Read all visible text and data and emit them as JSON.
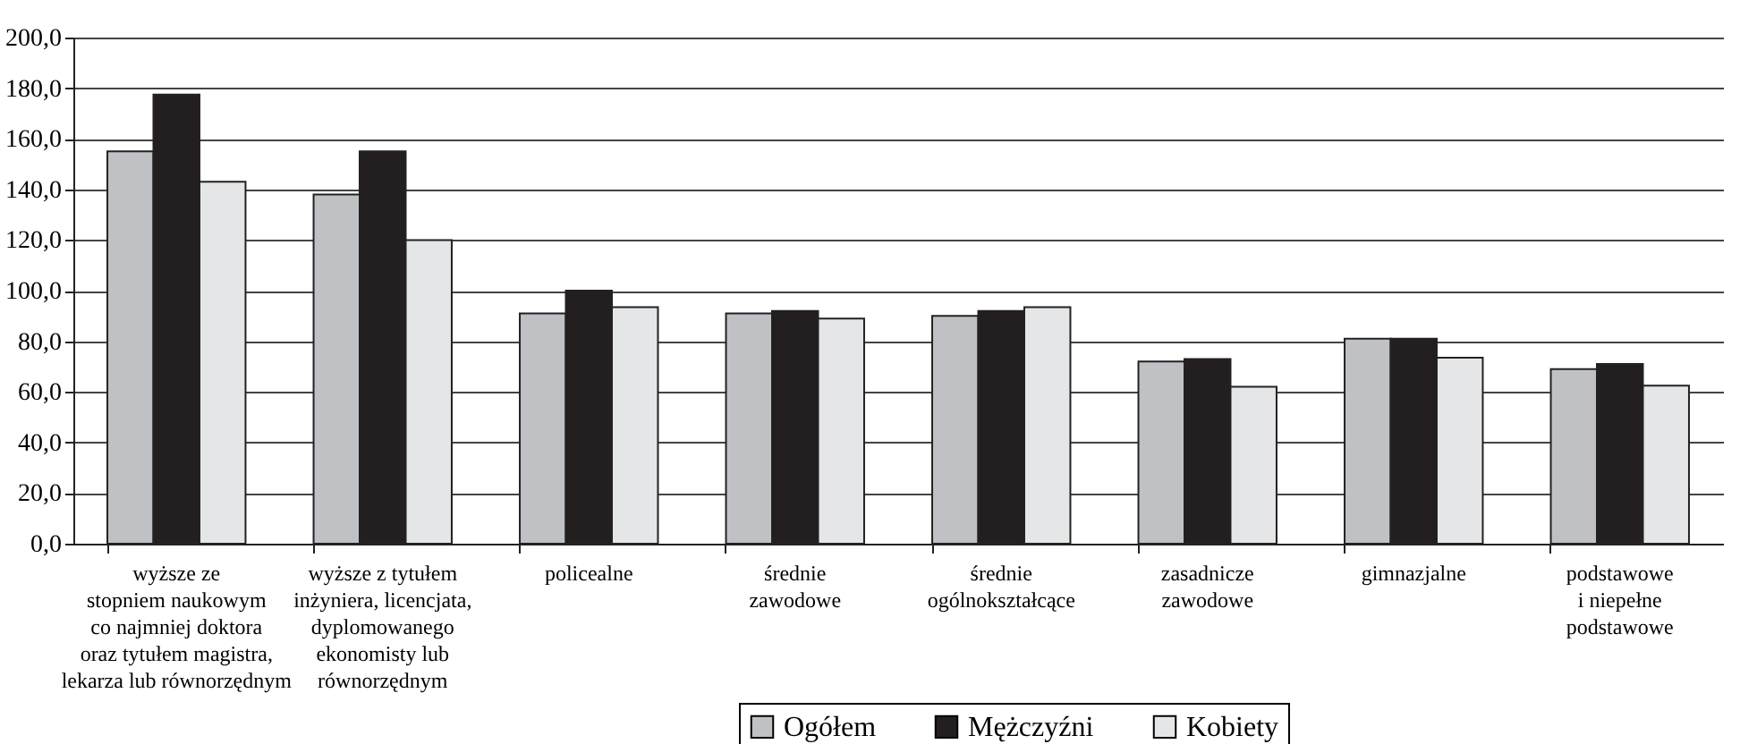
{
  "chart_data": {
    "type": "bar",
    "categories": [
      "wyższe ze\nstopniem naukowym\nco najmniej doktora\noraz tytułem magistra,\nlekarza lub równorzędnym",
      "wyższe z tytułem\ninżyniera, licencjata,\ndyplomowanego\nekonomisty lub\nrównorzędnym",
      "policealne",
      "średnie\nzawodowe",
      "średnie\nogólnokształcące",
      "zasadnicze\nzawodowe",
      "gimnazjalne",
      "podstawowe\ni niepełne\npodstawowe"
    ],
    "series": [
      {
        "name": "Ogółem",
        "color": "#c0c1c5",
        "values": [
          155,
          138,
          91,
          91,
          90,
          72,
          81,
          69
        ]
      },
      {
        "name": "Mężczyźni",
        "color": "#231f20",
        "values": [
          177.5,
          155,
          100,
          92,
          92,
          73,
          81,
          71
        ]
      },
      {
        "name": "Kobiety",
        "color": "#e5e6e8",
        "values": [
          143,
          120,
          93.5,
          89,
          93.5,
          62,
          73.5,
          62.5
        ]
      }
    ],
    "ylim": [
      0,
      200
    ],
    "yticks": [
      {
        "value": 0,
        "label": "0,0"
      },
      {
        "value": 20,
        "label": "20,0"
      },
      {
        "value": 40,
        "label": "40,0"
      },
      {
        "value": 60,
        "label": "60,0"
      },
      {
        "value": 80,
        "label": "80,0"
      },
      {
        "value": 100,
        "label": "100,0"
      },
      {
        "value": 120,
        "label": "120,0"
      },
      {
        "value": 140,
        "label": "140,0"
      },
      {
        "value": 160,
        "label": "160,0"
      },
      {
        "value": 180,
        "label": "180,0"
      },
      {
        "value": 200,
        "label": "200,0"
      }
    ],
    "grid": "y",
    "legend": "bottom"
  }
}
